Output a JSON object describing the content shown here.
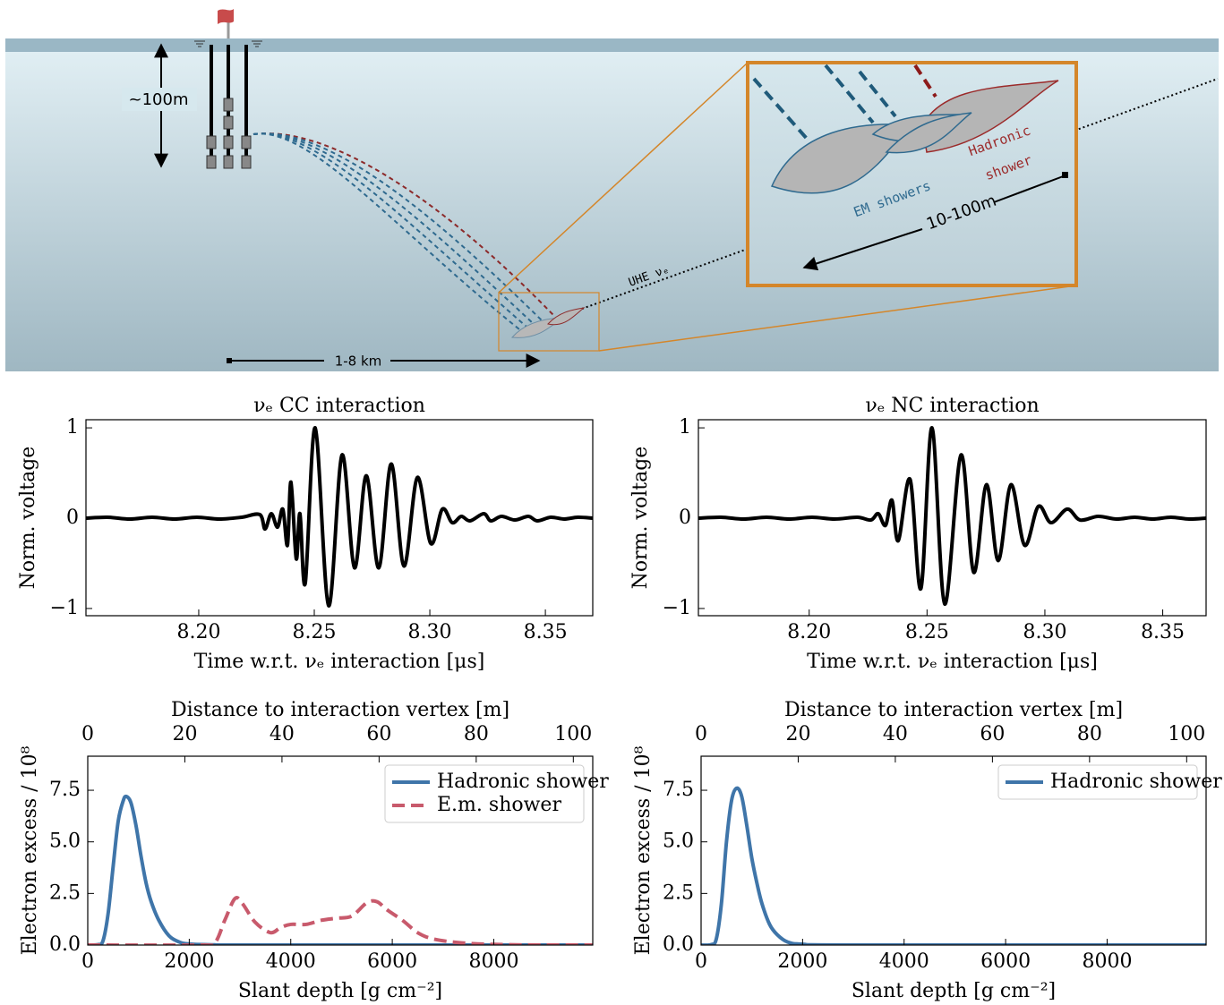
{
  "diagram": {
    "depth_label": "~100m",
    "distance_label": "1-8 km",
    "neutrino_label": "UHE νₑ",
    "inset": {
      "hadronic_label": [
        "Hadronic",
        "shower"
      ],
      "em_label": "EM showers",
      "length_label": "10-100m"
    }
  },
  "chart_data": [
    {
      "type": "line",
      "title": "νₑ CC interaction",
      "xlabel": "Time w.r.t. νₑ interaction [μs]",
      "ylabel": "Norm. voltage",
      "xlim": [
        8.1512,
        8.3705
      ],
      "xticks": [
        {
          "value": 8.2,
          "label": "8.20"
        },
        8.25,
        {
          "value": 8.3,
          "label": "8.30"
        },
        8.35
      ],
      "ylim": [
        -1.08,
        1.09
      ],
      "yticks": [
        {
          "value": -1,
          "label": "−1"
        },
        0,
        1
      ],
      "series": [
        {
          "color": "#000000",
          "x": [
            8.1512,
            8.1605,
            8.1702,
            8.1798,
            8.1895,
            8.1992,
            8.2089,
            8.2186,
            8.2264,
            8.2287,
            8.2314,
            8.2341,
            8.2364,
            8.2384,
            8.2399,
            8.2422,
            8.2438,
            8.2461,
            8.2504,
            8.2562,
            8.262,
            8.2674,
            8.2725,
            8.2779,
            8.2833,
            8.2888,
            8.2946,
            8.3004,
            8.3054,
            8.3097,
            8.3136,
            8.3174,
            8.3233,
            8.3264,
            8.331,
            8.3368,
            8.3426,
            8.3465,
            8.3523,
            8.3581,
            8.364,
            8.3705
          ],
          "values": [
            0,
            0.01,
            -0.01,
            0.01,
            -0.01,
            0.01,
            -0.01,
            0.01,
            0.04,
            -0.12,
            0.05,
            -0.1,
            0.1,
            -0.3,
            0.4,
            -0.45,
            0.05,
            -0.72,
            1.0,
            -0.97,
            0.7,
            -0.55,
            0.47,
            -0.55,
            0.6,
            -0.53,
            0.45,
            -0.28,
            0.1,
            -0.05,
            0.02,
            -0.03,
            0.05,
            -0.03,
            0.02,
            -0.02,
            0.02,
            -0.03,
            0.01,
            -0.01,
            0.01,
            0
          ]
        }
      ]
    },
    {
      "type": "line",
      "title": "νₑ NC interaction",
      "xlabel": "Time w.r.t. νₑ interaction [μs]",
      "ylabel": "Norm. voltage",
      "xlim": [
        8.153,
        8.3684
      ],
      "xticks": [
        {
          "value": 8.2,
          "label": "8.20"
        },
        8.25,
        {
          "value": 8.3,
          "label": "8.30"
        },
        8.35
      ],
      "ylim": [
        -1.08,
        1.09
      ],
      "yticks": [
        {
          "value": -1,
          "label": "−1"
        },
        0,
        1
      ],
      "series": [
        {
          "color": "#000000",
          "x": [
            8.153,
            8.1626,
            8.1722,
            8.1819,
            8.1915,
            8.2012,
            8.2108,
            8.2204,
            8.2262,
            8.2293,
            8.2324,
            8.2351,
            8.2378,
            8.2428,
            8.2474,
            8.2521,
            8.2575,
            8.2644,
            8.2698,
            8.2752,
            8.2802,
            8.2856,
            8.2914,
            8.2972,
            8.3026,
            8.3095,
            8.3149,
            8.3226,
            8.3304,
            8.3381,
            8.3458,
            8.3535,
            8.3612,
            8.3684
          ],
          "values": [
            0,
            0.01,
            -0.01,
            0.01,
            -0.01,
            0.01,
            -0.01,
            0.01,
            -0.02,
            0.05,
            -0.08,
            0.2,
            -0.25,
            0.43,
            -0.78,
            1.0,
            -0.95,
            0.7,
            -0.6,
            0.37,
            -0.47,
            0.37,
            -0.3,
            0.13,
            -0.05,
            0.1,
            -0.02,
            0.02,
            -0.01,
            0.01,
            -0.01,
            0.01,
            -0.01,
            0
          ]
        }
      ]
    },
    {
      "type": "line",
      "xlabel": "Slant depth [g cm⁻²]",
      "ylabel": "Electron excess / 10⁸",
      "x2label": "Distance to interaction vertex [m]",
      "xlim": [
        0,
        9950
      ],
      "xticks": [
        0,
        2000,
        4000,
        6000,
        8000
      ],
      "x2lim": [
        0,
        104
      ],
      "x2ticks": [
        0,
        20,
        40,
        60,
        80,
        100
      ],
      "ylim": [
        0,
        9.15
      ],
      "yticks": [
        {
          "value": 0,
          "label": "0.0"
        },
        2.5,
        {
          "value": 5,
          "label": "5.0"
        },
        7.5
      ],
      "legend": "upper right",
      "series": [
        {
          "name": "Hadronic shower",
          "color": "#3f75a9",
          "linestyle": "solid",
          "x": [
            0,
            200,
            300,
            400,
            500,
            600,
            700,
            760,
            850,
            950,
            1050,
            1150,
            1250,
            1400,
            1600,
            1800,
            2000,
            2500,
            3000,
            9950
          ],
          "values": [
            0,
            0.02,
            0.2,
            1.5,
            3.8,
            6.0,
            7.0,
            7.2,
            6.9,
            5.8,
            4.3,
            3.0,
            2.1,
            1.2,
            0.45,
            0.15,
            0.05,
            0.01,
            0,
            0
          ]
        },
        {
          "name": "E.m. shower",
          "color": "#c85a6c",
          "linestyle": "dashed",
          "x": [
            0,
            2200,
            2500,
            2700,
            2900,
            3050,
            3300,
            3600,
            3800,
            4000,
            4300,
            4600,
            4900,
            5200,
            5500,
            5700,
            5900,
            6200,
            6500,
            6800,
            7300,
            8000,
            9000,
            9950
          ],
          "values": [
            0,
            0,
            0.1,
            1.2,
            2.25,
            2.0,
            1.1,
            0.6,
            0.85,
            1.0,
            1.0,
            1.2,
            1.3,
            1.4,
            2.05,
            2.1,
            1.7,
            1.2,
            0.6,
            0.3,
            0.12,
            0.03,
            0,
            0
          ]
        }
      ]
    },
    {
      "type": "line",
      "xlabel": "Slant depth [g cm⁻²]",
      "ylabel": "Electron excess / 10⁸",
      "x2label": "Distance to interaction vertex [m]",
      "xlim": [
        0,
        9950
      ],
      "xticks": [
        0,
        2000,
        4000,
        6000,
        8000
      ],
      "x2lim": [
        0,
        104
      ],
      "x2ticks": [
        0,
        20,
        40,
        60,
        80,
        100
      ],
      "ylim": [
        0,
        9.15
      ],
      "yticks": [
        {
          "value": 0,
          "label": "0.0"
        },
        2.5,
        {
          "value": 5,
          "label": "5.0"
        },
        7.5
      ],
      "legend": "upper right",
      "series": [
        {
          "name": "Hadronic shower",
          "color": "#3f75a9",
          "linestyle": "solid",
          "x": [
            0,
            200,
            300,
            400,
            500,
            600,
            700,
            800,
            900,
            1000,
            1100,
            1200,
            1350,
            1500,
            1700,
            2000,
            3000,
            9950
          ],
          "values": [
            0,
            0.02,
            0.3,
            2.0,
            5.0,
            7.0,
            7.6,
            7.2,
            5.8,
            4.2,
            3.0,
            2.0,
            1.0,
            0.5,
            0.15,
            0.04,
            0,
            0
          ]
        }
      ]
    }
  ]
}
